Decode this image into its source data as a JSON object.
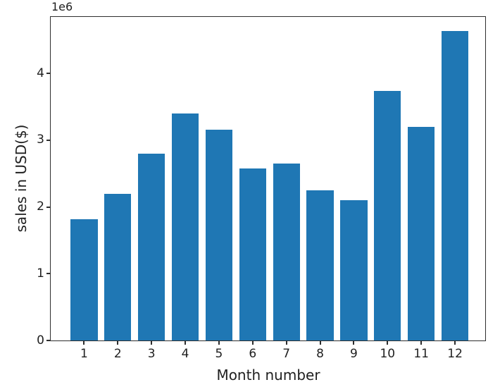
{
  "chart_data": {
    "type": "bar",
    "title": "",
    "xlabel": "Month number",
    "ylabel": "sales in USD($)",
    "y_offset_text": "1e6",
    "categories": [
      "1",
      "2",
      "3",
      "4",
      "5",
      "6",
      "7",
      "8",
      "9",
      "10",
      "11",
      "12"
    ],
    "values": [
      1820000,
      2200000,
      2800000,
      3400000,
      3160000,
      2580000,
      2650000,
      2250000,
      2100000,
      3740000,
      3200000,
      4630000
    ],
    "bar_color": "#1f77b4",
    "axis_color": "#2e2e2e",
    "text_color": "#1f1f1f",
    "background_color": "#ffffff",
    "ylim": [
      0,
      4855000
    ],
    "yticks": {
      "values": [
        0,
        1000000,
        2000000,
        3000000,
        4000000
      ],
      "labels": [
        "0",
        "1",
        "2",
        "3",
        "4"
      ]
    },
    "xticks": [
      "1",
      "2",
      "3",
      "4",
      "5",
      "6",
      "7",
      "8",
      "9",
      "10",
      "11",
      "12"
    ],
    "grid": false,
    "legend": null
  }
}
